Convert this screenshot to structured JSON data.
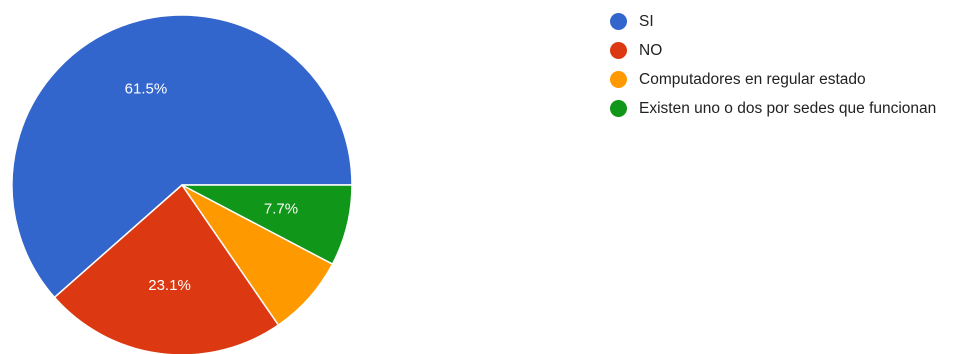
{
  "chart_data": {
    "type": "pie",
    "categories": [
      "SI",
      "NO",
      "Computadores en regular estado",
      "Existen uno o dos por sedes que funcionan"
    ],
    "values": [
      61.5,
      23.1,
      7.7,
      7.7
    ],
    "slice_labels": [
      "61.5%",
      "23.1%",
      "",
      "7.7%"
    ],
    "colors": [
      "#3366cc",
      "#dc3912",
      "#ff9900",
      "#109618"
    ],
    "legend_position": "right",
    "start_angle": "3 o'clock",
    "direction": "counterclockwise"
  }
}
